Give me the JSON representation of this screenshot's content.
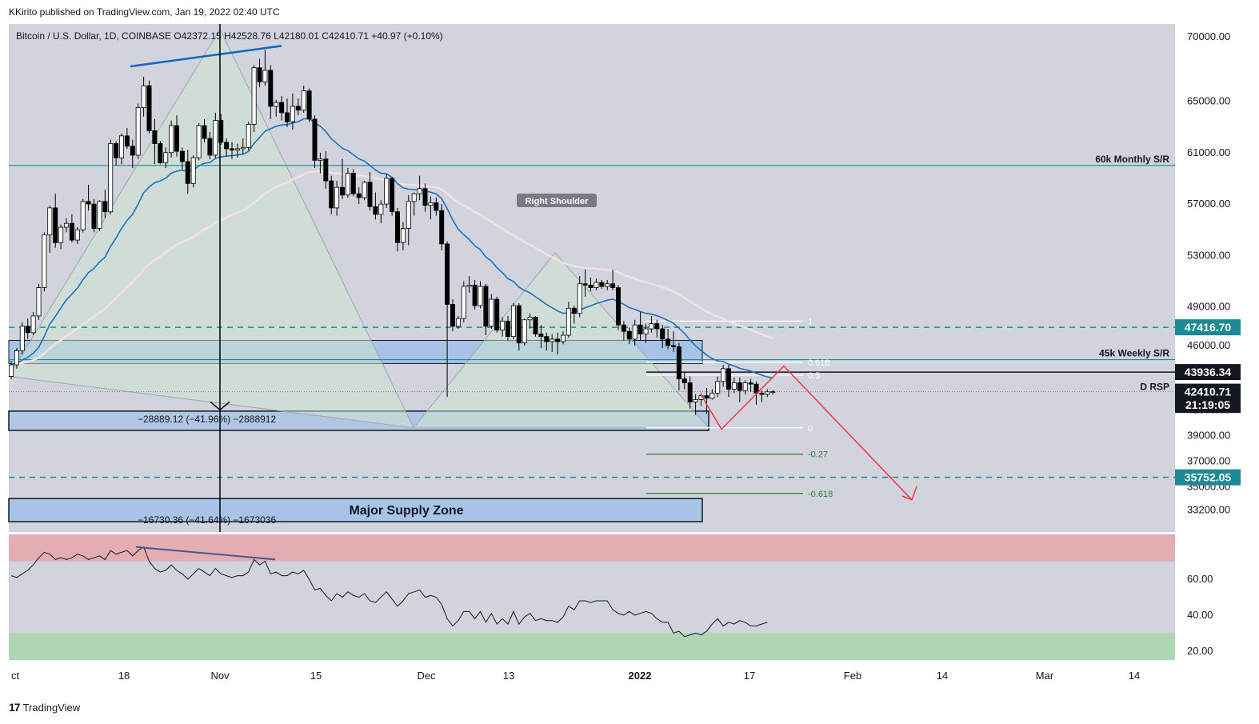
{
  "header": {
    "published": "KKirito published on TradingView.com, Jan 19, 2022 02:40 UTC",
    "legend": "Bitcoin / U.S. Dollar, 1D, COINBASE  O42372.15  H42528.76  L42180.01  C42410.71  +40.97 (+0.10%)"
  },
  "footer": {
    "brand": "TradingView",
    "logo": "17"
  },
  "colors": {
    "background": "#d1d4dc",
    "up": "#ffffff",
    "down": "#000000",
    "ema_blue": "#1e6fc0",
    "ema_pink": "#f3e0e0",
    "fib_green": "#2e7d32",
    "arrow_red": "#f23645",
    "teal": "#1b8a94",
    "zone_blue": "#a7c3e5"
  },
  "chart_data": {
    "type": "candlestick",
    "y_axis": {
      "range": [
        31500,
        71000
      ],
      "ticks": [
        "70000.00",
        "65000.00",
        "61000.00",
        "57000.00",
        "53000.00",
        "49000.00",
        "46000.00",
        "42000.00",
        "41000.00",
        "39000.00",
        "37000.00",
        "35000.00",
        "33200.00"
      ],
      "tick_values": [
        70000,
        65000,
        61000,
        57000,
        53000,
        49000,
        46000,
        42000,
        41000,
        39000,
        37000,
        35000,
        33200
      ]
    },
    "x_axis": {
      "labels": [
        "ct",
        "18",
        "Nov",
        "15",
        "Dec",
        "13",
        "2022",
        "17",
        "Feb",
        "14",
        "Mar",
        "14"
      ]
    },
    "price_labels": [
      {
        "text": "47416.70",
        "value": 47416.7,
        "style": "teal"
      },
      {
        "text": "43936.34",
        "value": 43936.34,
        "style": "black"
      },
      {
        "text": "42410.71",
        "value": 42410.71,
        "style": "black"
      },
      {
        "text": "21:19:05",
        "value": 41380,
        "style": "black"
      },
      {
        "text": "35752.05",
        "value": 35752.05,
        "style": "teal"
      }
    ],
    "level_labels": [
      {
        "text": "60k Monthly S/R",
        "value": 60000
      },
      {
        "text": "45k Weekly S/R",
        "value": 44900
      },
      {
        "text": "D RSP",
        "value": 42800
      }
    ],
    "annotations": {
      "right_shoulder": "Right Shoulder",
      "measure_1": "−28889.12 (−41.96%) −2888912",
      "measure_2": "−16730.36 (−41.64%) −1673036",
      "supply_zone": "Major Supply Zone"
    },
    "fib_levels": [
      {
        "label": "1",
        "value": 47900
      },
      {
        "label": "0.618",
        "value": 44700
      },
      {
        "label": "0.5",
        "value": 43700
      },
      {
        "label": "0",
        "value": 39600
      },
      {
        "label": "-0.27",
        "value": 37550
      },
      {
        "label": "-0.618",
        "value": 34500
      }
    ],
    "candles": [
      [
        43600,
        44800,
        43400,
        44500
      ],
      [
        44500,
        45800,
        44200,
        45600
      ],
      [
        45600,
        47800,
        45300,
        47500
      ],
      [
        47500,
        48100,
        46500,
        47000
      ],
      [
        47000,
        48600,
        46800,
        48300
      ],
      [
        48300,
        50800,
        48000,
        50500
      ],
      [
        50500,
        54800,
        50200,
        54600
      ],
      [
        54600,
        56900,
        53200,
        56700
      ],
      [
        56700,
        57800,
        53600,
        54000
      ],
      [
        54000,
        55400,
        53500,
        55200
      ],
      [
        55200,
        55900,
        54800,
        55500
      ],
      [
        55500,
        56200,
        54000,
        54200
      ],
      [
        54200,
        55200,
        53900,
        55000
      ],
      [
        55000,
        57400,
        54800,
        57200
      ],
      [
        57200,
        58500,
        56500,
        57000
      ],
      [
        57000,
        57400,
        54800,
        55100
      ],
      [
        55100,
        57300,
        54900,
        57200
      ],
      [
        57200,
        58100,
        55900,
        56400
      ],
      [
        56400,
        62000,
        56200,
        61700
      ],
      [
        61700,
        61900,
        60000,
        60600
      ],
      [
        60600,
        62500,
        60100,
        62300
      ],
      [
        62300,
        62900,
        61300,
        61500
      ],
      [
        61500,
        62000,
        59800,
        60800
      ],
      [
        60800,
        64800,
        60500,
        64500
      ],
      [
        64500,
        66900,
        63800,
        66200
      ],
      [
        66200,
        66600,
        62500,
        62700
      ],
      [
        62700,
        63600,
        60100,
        61700
      ],
      [
        61700,
        61900,
        60100,
        60200
      ],
      [
        60200,
        61400,
        59800,
        61000
      ],
      [
        61000,
        63500,
        60600,
        63100
      ],
      [
        63100,
        63900,
        60700,
        61100
      ],
      [
        61100,
        61400,
        59700,
        60300
      ],
      [
        60300,
        61200,
        57800,
        58600
      ],
      [
        58600,
        60800,
        58300,
        60600
      ],
      [
        60600,
        63300,
        60400,
        63100
      ],
      [
        63100,
        63600,
        61800,
        62100
      ],
      [
        62100,
        62600,
        60500,
        60800
      ],
      [
        60800,
        64100,
        60600,
        63500
      ],
      [
        63500,
        64000,
        61600,
        61800
      ],
      [
        61800,
        62100,
        60700,
        61300
      ],
      [
        61300,
        61800,
        60500,
        61200
      ],
      [
        61200,
        61700,
        60600,
        61300
      ],
      [
        61300,
        62100,
        60900,
        61400
      ],
      [
        61400,
        63400,
        61200,
        63200
      ],
      [
        63200,
        67800,
        62600,
        67600
      ],
      [
        67600,
        68300,
        66100,
        66500
      ],
      [
        66500,
        69000,
        66200,
        67400
      ],
      [
        67400,
        67800,
        63600,
        64600
      ],
      [
        64600,
        65100,
        63800,
        64900
      ],
      [
        64900,
        65400,
        63500,
        64100
      ],
      [
        64100,
        65200,
        63000,
        63400
      ],
      [
        63400,
        65600,
        62800,
        64600
      ],
      [
        64600,
        65200,
        63900,
        64300
      ],
      [
        64300,
        66200,
        64100,
        65800
      ],
      [
        65800,
        66000,
        63400,
        63600
      ],
      [
        63600,
        63900,
        59800,
        60400
      ],
      [
        60400,
        61000,
        59400,
        60500
      ],
      [
        60500,
        61100,
        58200,
        58800
      ],
      [
        58800,
        59200,
        56200,
        56700
      ],
      [
        56700,
        58800,
        56100,
        58300
      ],
      [
        58300,
        60500,
        57400,
        57700
      ],
      [
        57700,
        59800,
        57500,
        59400
      ],
      [
        59400,
        59700,
        57600,
        57800
      ],
      [
        57800,
        58300,
        57000,
        57500
      ],
      [
        57500,
        58800,
        57300,
        58700
      ],
      [
        58700,
        59500,
        56500,
        56800
      ],
      [
        56800,
        57900,
        55800,
        56200
      ],
      [
        56200,
        57300,
        55500,
        57000
      ],
      [
        57000,
        59300,
        56700,
        59000
      ],
      [
        59000,
        59100,
        56100,
        56400
      ],
      [
        56400,
        56700,
        53300,
        54000
      ],
      [
        54000,
        55600,
        53400,
        55100
      ],
      [
        55100,
        57700,
        53800,
        57200
      ],
      [
        57200,
        57900,
        56100,
        57800
      ],
      [
        57800,
        59200,
        57300,
        58200
      ],
      [
        58200,
        58600,
        56400,
        56900
      ],
      [
        56900,
        57600,
        55800,
        57100
      ],
      [
        57100,
        57500,
        56100,
        56500
      ],
      [
        56500,
        57000,
        53400,
        53900
      ],
      [
        53900,
        54100,
        42000,
        49200
      ],
      [
        49200,
        49600,
        47100,
        47500
      ],
      [
        47500,
        48300,
        47300,
        48100
      ],
      [
        48100,
        51000,
        47800,
        50600
      ],
      [
        50600,
        51400,
        50100,
        50700
      ],
      [
        50700,
        51100,
        48800,
        49100
      ],
      [
        49100,
        51000,
        48900,
        50600
      ],
      [
        50600,
        50800,
        46800,
        47500
      ],
      [
        47500,
        50000,
        47300,
        49600
      ],
      [
        49600,
        49800,
        47000,
        47200
      ],
      [
        47200,
        48200,
        46700,
        47900
      ],
      [
        47900,
        48300,
        46400,
        46700
      ],
      [
        46700,
        49300,
        46500,
        49100
      ],
      [
        49100,
        49300,
        45600,
        46200
      ],
      [
        46200,
        48100,
        46000,
        48000
      ],
      [
        48000,
        48500,
        47300,
        48200
      ],
      [
        48200,
        48300,
        46700,
        46900
      ],
      [
        46900,
        47600,
        45800,
        46700
      ],
      [
        46700,
        47000,
        45600,
        46300
      ],
      [
        46300,
        46900,
        45500,
        46500
      ],
      [
        46500,
        47000,
        45300,
        46300
      ],
      [
        46300,
        47100,
        46100,
        46800
      ],
      [
        46800,
        49400,
        46600,
        48900
      ],
      [
        48900,
        49100,
        47700,
        48500
      ],
      [
        48500,
        51400,
        48200,
        50800
      ],
      [
        50800,
        51900,
        49800,
        50700
      ],
      [
        50700,
        51300,
        50200,
        50500
      ],
      [
        50500,
        51200,
        50300,
        50900
      ],
      [
        50900,
        51100,
        50400,
        50600
      ],
      [
        50600,
        51100,
        50300,
        50800
      ],
      [
        50800,
        51900,
        50300,
        50500
      ],
      [
        50500,
        50700,
        47200,
        47600
      ],
      [
        47600,
        47900,
        46400,
        47100
      ],
      [
        47100,
        47400,
        46100,
        46500
      ],
      [
        46500,
        48000,
        46000,
        47600
      ],
      [
        47600,
        48600,
        46400,
        46900
      ],
      [
        46900,
        47700,
        46200,
        47300
      ],
      [
        47300,
        48300,
        47000,
        47700
      ],
      [
        47700,
        48000,
        46600,
        47300
      ],
      [
        47300,
        47600,
        45800,
        46500
      ],
      [
        46500,
        47300,
        45700,
        46000
      ],
      [
        46000,
        47100,
        45500,
        45900
      ],
      [
        45900,
        46200,
        42500,
        43400
      ],
      [
        43400,
        43900,
        42600,
        43100
      ],
      [
        43100,
        43600,
        41100,
        41600
      ],
      [
        41600,
        42200,
        40600,
        41800
      ],
      [
        41800,
        42300,
        41300,
        42100
      ],
      [
        42100,
        42700,
        40700,
        41900
      ],
      [
        41900,
        42600,
        41800,
        42300
      ],
      [
        42300,
        43600,
        42000,
        43200
      ],
      [
        43200,
        44500,
        42800,
        44200
      ],
      [
        44200,
        44500,
        42000,
        42600
      ],
      [
        42600,
        43500,
        42300,
        43100
      ],
      [
        43100,
        43500,
        41600,
        42500
      ],
      [
        42500,
        43300,
        42200,
        43100
      ],
      [
        43100,
        43400,
        42400,
        43000
      ],
      [
        43000,
        43200,
        41400,
        42300
      ],
      [
        42300,
        42500,
        41600,
        42200
      ],
      [
        42200,
        42600,
        42000,
        42400
      ],
      [
        42372,
        42528,
        42180,
        42410
      ]
    ],
    "rsi": {
      "y_axis": {
        "range": [
          15,
          85
        ],
        "ticks": [
          "60.00",
          "40.00",
          "20.00"
        ],
        "tick_values": [
          60,
          40,
          20
        ]
      },
      "bands": [
        70,
        30
      ],
      "values": [
        62,
        61,
        63,
        65,
        68,
        72,
        75,
        74,
        71,
        72,
        71,
        72,
        74,
        73,
        71,
        72,
        73,
        71,
        76,
        74,
        75,
        76,
        73,
        76,
        78,
        70,
        66,
        64,
        65,
        68,
        65,
        63,
        60,
        63,
        66,
        64,
        62,
        66,
        63,
        62,
        61,
        62,
        62,
        64,
        71,
        68,
        70,
        63,
        64,
        62,
        62,
        64,
        63,
        65,
        60,
        54,
        55,
        51,
        48,
        52,
        50,
        53,
        51,
        50,
        52,
        48,
        47,
        50,
        53,
        49,
        45,
        48,
        52,
        53,
        54,
        50,
        51,
        50,
        46,
        38,
        34,
        37,
        42,
        42,
        38,
        42,
        36,
        41,
        35,
        38,
        35,
        42,
        35,
        39,
        41,
        37,
        38,
        37,
        37,
        36,
        39,
        45,
        43,
        48,
        48,
        47,
        48,
        48,
        48,
        43,
        41,
        40,
        42,
        40,
        41,
        42,
        41,
        38,
        36,
        36,
        30,
        31,
        28,
        29,
        30,
        29,
        31,
        35,
        38,
        34,
        36,
        35,
        37,
        36,
        34,
        34,
        35,
        36
      ]
    }
  }
}
